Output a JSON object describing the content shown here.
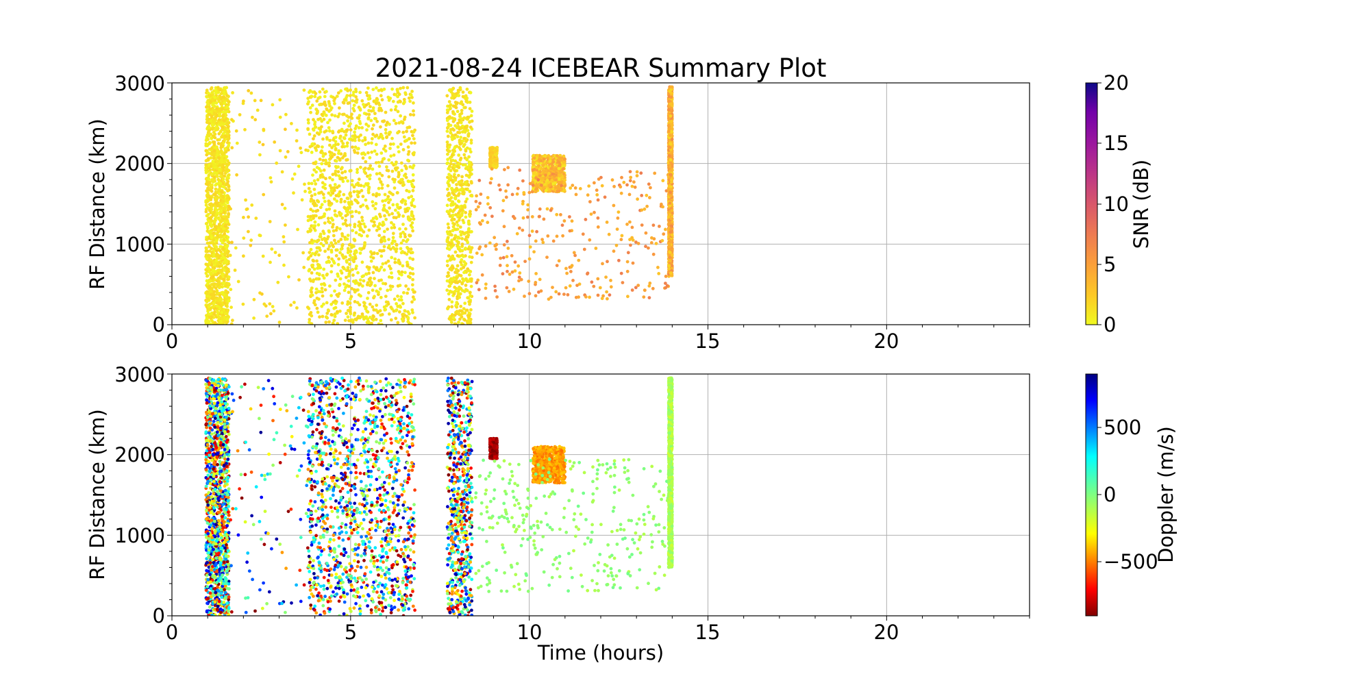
{
  "chart_data": [
    {
      "type": "scatter",
      "title": "2021-08-24 ICEBEAR Summary Plot",
      "xlabel": "",
      "ylabel": "RF Distance (km)",
      "xlim": [
        0,
        24
      ],
      "ylim": [
        0,
        3000
      ],
      "xticks": [
        "0",
        "5",
        "10",
        "15",
        "20"
      ],
      "yticks": [
        "0",
        "1000",
        "2000",
        "3000"
      ],
      "grid": true,
      "colorbar": {
        "label": "SNR (dB)",
        "range": [
          0,
          20
        ],
        "ticks": [
          "0",
          "5",
          "10",
          "15",
          "20"
        ],
        "colormap": "plasma_r"
      },
      "series": [
        {
          "x_range": [
            0.95,
            1.6
          ],
          "y_range": [
            0,
            2950
          ],
          "color_value": 1,
          "density": "very high"
        },
        {
          "x_range": [
            1.6,
            3.8
          ],
          "y_range": [
            0,
            2950
          ],
          "color_value": 1.5,
          "density": "low"
        },
        {
          "x_range": [
            3.8,
            6.8
          ],
          "y_range": [
            0,
            2950
          ],
          "color_value": 1,
          "density": "very high"
        },
        {
          "x_range": [
            7.7,
            8.4
          ],
          "y_range": [
            0,
            2950
          ],
          "color_value": 1,
          "density": "high"
        },
        {
          "x_range": [
            8.9,
            9.1
          ],
          "y_range": [
            1950,
            2200
          ],
          "color_value": 2,
          "density": "medium"
        },
        {
          "x_range": [
            10.1,
            11.0
          ],
          "y_range": [
            1650,
            2100
          ],
          "color_value": 3,
          "density": "high"
        },
        {
          "x_range": [
            8.5,
            13.9
          ],
          "y_range": [
            300,
            1950
          ],
          "color_value": 5,
          "density": "medium"
        },
        {
          "x_range": [
            13.9,
            14.0
          ],
          "y_range": [
            600,
            2950
          ],
          "color_value": 4,
          "density": "very high"
        }
      ]
    },
    {
      "type": "scatter",
      "title": "",
      "xlabel": "Time (hours)",
      "ylabel": "RF Distance (km)",
      "xlim": [
        0,
        24
      ],
      "ylim": [
        0,
        3000
      ],
      "xticks": [
        "0",
        "5",
        "10",
        "15",
        "20"
      ],
      "yticks": [
        "0",
        "1000",
        "2000",
        "3000"
      ],
      "grid": true,
      "colorbar": {
        "label": "Doppler (m/s)",
        "range": [
          -900,
          900
        ],
        "ticks": [
          "−500",
          "0",
          "500"
        ],
        "tick_values": [
          -500,
          0,
          500
        ],
        "colormap": "jet_r"
      },
      "series": [
        {
          "x_range": [
            0.95,
            1.6
          ],
          "y_range": [
            0,
            2950
          ],
          "color_value": "mixed",
          "density": "very high"
        },
        {
          "x_range": [
            1.6,
            3.8
          ],
          "y_range": [
            0,
            2950
          ],
          "color_value": "mixed",
          "density": "low"
        },
        {
          "x_range": [
            3.8,
            6.8
          ],
          "y_range": [
            0,
            2950
          ],
          "color_value": "mixed",
          "density": "very high"
        },
        {
          "x_range": [
            7.7,
            8.4
          ],
          "y_range": [
            0,
            2950
          ],
          "color_value": "mixed",
          "density": "high"
        },
        {
          "x_range": [
            8.9,
            9.1
          ],
          "y_range": [
            1950,
            2200
          ],
          "color_value": -850,
          "density": "medium"
        },
        {
          "x_range": [
            10.1,
            11.0
          ],
          "y_range": [
            1650,
            2100
          ],
          "color_value": -450,
          "density": "high"
        },
        {
          "x_range": [
            8.5,
            13.9
          ],
          "y_range": [
            300,
            1950
          ],
          "color_value": -50,
          "density": "medium"
        },
        {
          "x_range": [
            13.9,
            14.0
          ],
          "y_range": [
            600,
            2950
          ],
          "color_value": -100,
          "density": "very high"
        }
      ]
    }
  ]
}
